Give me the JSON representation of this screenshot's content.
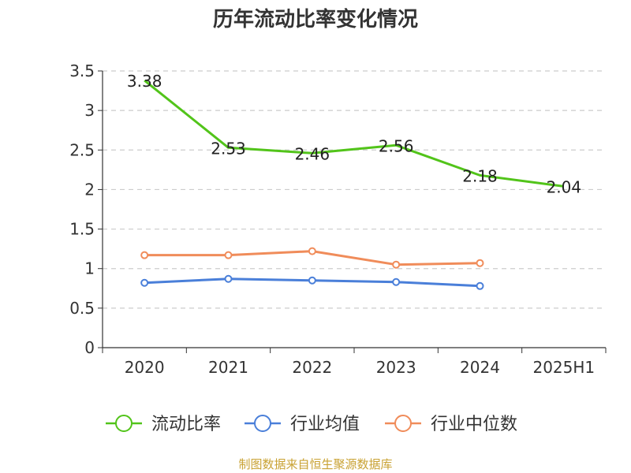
{
  "title": "历年流动比率变化情况",
  "source_note": "制图数据来自恒生聚源数据库",
  "chart_data": {
    "type": "line",
    "categories": [
      "2020",
      "2021",
      "2022",
      "2023",
      "2024",
      "2025H1"
    ],
    "y_ticks": [
      "0",
      "0.5",
      "1",
      "1.5",
      "2",
      "2.5",
      "3",
      "3.5"
    ],
    "ylim": [
      0,
      3.5
    ],
    "grid": true,
    "legend_position": "bottom",
    "series": [
      {
        "name": "流动比率",
        "color": "#52c41a",
        "values": [
          3.38,
          2.53,
          2.46,
          2.56,
          2.18,
          2.04
        ],
        "labels": [
          "3.38",
          "2.53",
          "2.46",
          "2.56",
          "2.18",
          "2.04"
        ]
      },
      {
        "name": "行业均值",
        "color": "#4a7fd9",
        "values": [
          0.82,
          0.87,
          0.85,
          0.83,
          0.78,
          null
        ]
      },
      {
        "name": "行业中位数",
        "color": "#f08c5a",
        "values": [
          1.17,
          1.17,
          1.22,
          1.05,
          1.07,
          null
        ]
      }
    ]
  }
}
